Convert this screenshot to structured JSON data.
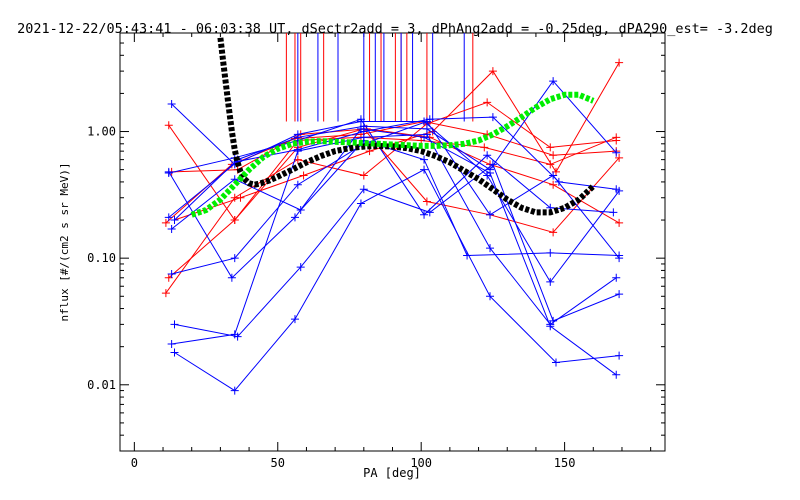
{
  "chart_data": {
    "type": "line",
    "title": "2021-12-22/05:43:41 - 06:03:38 UT, dSectr2add = 3, dPhAng2add = -0.25deg, dPA290_est=  -3.2deg",
    "xlabel": "PA [deg]",
    "ylabel": "nflux [#/(cm2 s sr MeV)]",
    "xlim": [
      -5,
      185
    ],
    "ylim": [
      0.003,
      6
    ],
    "yscale": "log",
    "x_ticks": [
      0,
      50,
      100,
      150
    ],
    "x_tick_labels": [
      "0",
      "50",
      "100",
      "150"
    ],
    "y_ticks": [
      0.01,
      0.1,
      1.0
    ],
    "y_tick_labels": [
      "0.01",
      "0.10",
      "1.00"
    ],
    "grid": false,
    "colors": {
      "red": "#ff0000",
      "blue": "#0000ff",
      "green": "#00ee00",
      "black": "#000000"
    },
    "series": [
      {
        "color": "red",
        "x": [
          11,
          35,
          57,
          80,
          102,
          123,
          145,
          168
        ],
        "y": [
          0.053,
          0.3,
          0.6,
          0.45,
          1.15,
          1.7,
          0.75,
          0.85
        ]
      },
      {
        "color": "red",
        "x": [
          12,
          35,
          57,
          80,
          102,
          124,
          146,
          169
        ],
        "y": [
          1.12,
          0.2,
          0.75,
          1.05,
          0.28,
          0.22,
          0.16,
          0.62
        ]
      },
      {
        "color": "red",
        "x": [
          11,
          34,
          56,
          79,
          101,
          123,
          146,
          168
        ],
        "y": [
          0.19,
          0.55,
          0.88,
          0.95,
          1.2,
          0.95,
          0.65,
          0.7
        ]
      },
      {
        "color": "red",
        "x": [
          13,
          36,
          58,
          81,
          103,
          124,
          146,
          169
        ],
        "y": [
          0.48,
          0.5,
          0.95,
          1.05,
          0.9,
          0.55,
          0.38,
          0.19
        ]
      },
      {
        "color": "red",
        "x": [
          14,
          37,
          59,
          82,
          104,
          125,
          147,
          169
        ],
        "y": [
          0.2,
          0.3,
          0.45,
          0.7,
          1.0,
          3.0,
          0.48,
          3.5
        ]
      },
      {
        "color": "red",
        "x": [
          12,
          35,
          57,
          79,
          100,
          122,
          145,
          168
        ],
        "y": [
          0.07,
          0.2,
          0.85,
          0.9,
          0.85,
          0.75,
          0.55,
          0.9
        ]
      },
      {
        "color": "blue",
        "x": [
          13,
          35,
          57,
          79,
          101,
          123,
          145,
          169
        ],
        "y": [
          1.65,
          0.55,
          0.95,
          1.2,
          1.2,
          0.45,
          0.065,
          0.34
        ]
      },
      {
        "color": "blue",
        "x": [
          13,
          35,
          57,
          80,
          102,
          124,
          145,
          168
        ],
        "y": [
          0.021,
          0.025,
          0.7,
          0.9,
          0.95,
          0.12,
          0.03,
          0.07
        ]
      },
      {
        "color": "blue",
        "x": [
          14,
          36,
          58,
          80,
          103,
          125,
          146,
          169
        ],
        "y": [
          0.03,
          0.024,
          0.085,
          0.35,
          0.23,
          0.55,
          0.032,
          0.052
        ]
      },
      {
        "color": "blue",
        "x": [
          14,
          35,
          56,
          79,
          101,
          124,
          147,
          169
        ],
        "y": [
          0.018,
          0.009,
          0.033,
          0.27,
          0.5,
          0.05,
          0.015,
          0.017
        ]
      },
      {
        "color": "blue",
        "x": [
          12,
          34,
          56,
          79,
          101,
          124,
          145,
          168
        ],
        "y": [
          0.48,
          0.07,
          0.21,
          1.05,
          0.9,
          0.47,
          0.029,
          0.012
        ]
      },
      {
        "color": "blue",
        "x": [
          13,
          35,
          57,
          80,
          102,
          124,
          146,
          169
        ],
        "y": [
          0.075,
          0.1,
          0.38,
          0.8,
          1.2,
          0.22,
          0.45,
          0.1
        ]
      },
      {
        "color": "blue",
        "x": [
          12,
          35,
          57,
          79,
          101,
          123,
          145,
          167
        ],
        "y": [
          0.47,
          0.62,
          0.85,
          1.25,
          0.22,
          0.65,
          0.25,
          0.23
        ]
      },
      {
        "color": "blue",
        "x": [
          14,
          36,
          57,
          80,
          102,
          124,
          146,
          168
        ],
        "y": [
          0.2,
          0.6,
          0.9,
          1.1,
          1.05,
          0.5,
          2.5,
          0.68
        ]
      },
      {
        "color": "blue",
        "x": [
          13,
          35,
          58,
          80,
          101,
          116,
          145,
          169
        ],
        "y": [
          0.17,
          0.42,
          0.24,
          0.85,
          0.6,
          0.105,
          0.11,
          0.105
        ]
      },
      {
        "color": "blue",
        "x": [
          12,
          36,
          57,
          80,
          103,
          125,
          148,
          168
        ],
        "y": [
          0.21,
          0.58,
          0.72,
          1.0,
          1.25,
          1.3,
          0.4,
          0.35
        ]
      }
    ],
    "vertical_lines": [
      {
        "color": "red",
        "x": [
          53,
          56,
          58,
          66,
          82,
          86,
          91,
          93,
          95,
          102,
          118
        ]
      },
      {
        "color": "blue",
        "x": [
          57,
          64,
          71,
          80,
          84,
          87,
          93,
          97,
          104,
          115
        ]
      }
    ],
    "fit_curves": [
      {
        "color": "black",
        "x": [
          30,
          31,
          32,
          33,
          34,
          35,
          36,
          37,
          38,
          40,
          42,
          44,
          47,
          50,
          55,
          60,
          65,
          70,
          75,
          80,
          85,
          90,
          95,
          100,
          105,
          110,
          115,
          120,
          125,
          130,
          135,
          140,
          145,
          150,
          155,
          160
        ],
        "y": [
          5.5,
          3.5,
          2.3,
          1.5,
          1.0,
          0.72,
          0.57,
          0.48,
          0.43,
          0.39,
          0.38,
          0.39,
          0.41,
          0.44,
          0.5,
          0.57,
          0.64,
          0.7,
          0.74,
          0.76,
          0.77,
          0.76,
          0.74,
          0.7,
          0.64,
          0.57,
          0.49,
          0.42,
          0.35,
          0.29,
          0.25,
          0.23,
          0.23,
          0.25,
          0.29,
          0.37
        ]
      },
      {
        "color": "green",
        "x": [
          20,
          25,
          30,
          35,
          40,
          45,
          50,
          55,
          60,
          65,
          70,
          75,
          80,
          85,
          90,
          95,
          100,
          105,
          110,
          115,
          120,
          125,
          130,
          135,
          140,
          145,
          150,
          155,
          160
        ],
        "y": [
          0.22,
          0.24,
          0.29,
          0.38,
          0.5,
          0.63,
          0.73,
          0.8,
          0.83,
          0.84,
          0.83,
          0.82,
          0.81,
          0.8,
          0.79,
          0.78,
          0.77,
          0.77,
          0.78,
          0.8,
          0.85,
          0.95,
          1.1,
          1.3,
          1.55,
          1.8,
          1.95,
          1.95,
          1.75
        ]
      }
    ]
  }
}
